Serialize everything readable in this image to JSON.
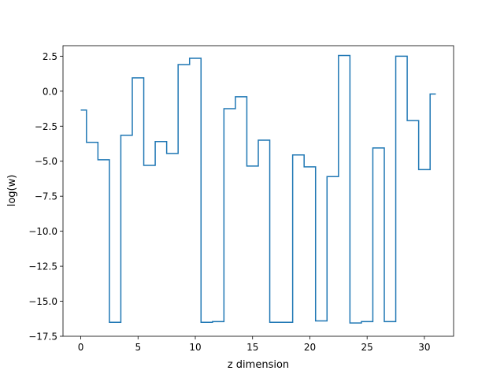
{
  "chart_data": {
    "type": "line",
    "drawstyle": "steps-mid",
    "title": "",
    "xlabel": "z dimension",
    "ylabel": "log(w)",
    "xlim": [
      -1.55,
      32.55
    ],
    "ylim": [
      -17.5,
      3.25
    ],
    "x_ticks": [
      0,
      5,
      10,
      15,
      20,
      25,
      30
    ],
    "x_tick_labels": [
      "0",
      "5",
      "10",
      "15",
      "20",
      "25",
      "30"
    ],
    "y_ticks": [
      2.5,
      0.0,
      -2.5,
      -5.0,
      -7.5,
      -10.0,
      -12.5,
      -15.0,
      -17.5
    ],
    "y_tick_labels": [
      "2.5",
      "0.0",
      "−2.5",
      "−5.0",
      "−7.5",
      "−10.0",
      "−12.5",
      "−15.0",
      "−17.5"
    ],
    "grid": false,
    "legend": "none",
    "series": [
      {
        "color": "#1f77b4",
        "x": [
          0,
          1,
          2,
          3,
          4,
          5,
          6,
          7,
          8,
          9,
          10,
          11,
          12,
          13,
          14,
          15,
          16,
          17,
          18,
          19,
          20,
          21,
          22,
          23,
          24,
          25,
          26,
          27,
          28,
          29,
          30,
          31
        ],
        "values": [
          -1.35,
          -3.65,
          -4.9,
          -16.5,
          -3.15,
          0.95,
          -5.3,
          -3.6,
          -4.45,
          1.9,
          2.35,
          -16.5,
          -16.45,
          -1.25,
          -0.4,
          -5.35,
          -3.5,
          -16.5,
          -16.5,
          -4.55,
          -5.4,
          -16.4,
          -6.1,
          2.55,
          -16.55,
          -16.45,
          -4.05,
          -16.45,
          2.5,
          -2.1,
          -5.6,
          -0.2
        ]
      }
    ]
  }
}
